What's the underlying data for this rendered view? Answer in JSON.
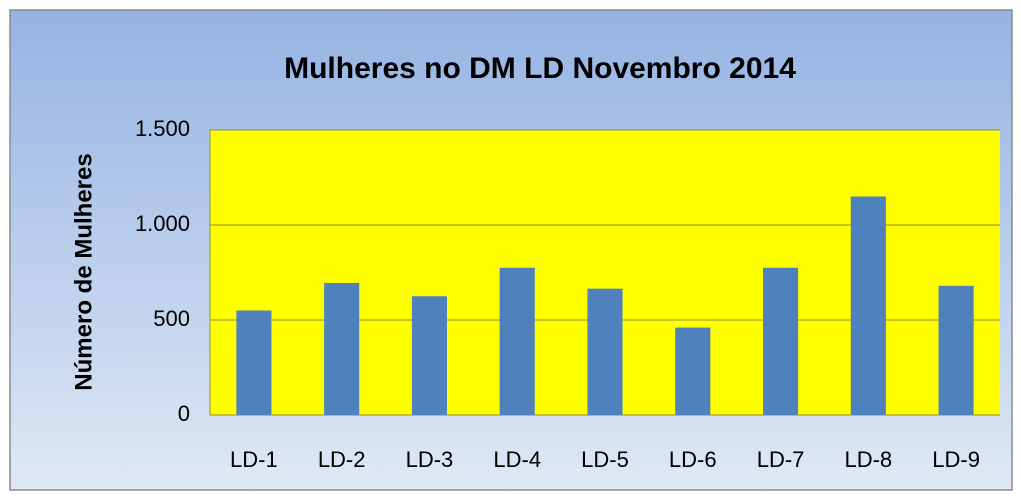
{
  "chart_data": {
    "type": "bar",
    "title": "Mulheres no DM LD  Novembro 2014",
    "y_label": "Número de Mulheres",
    "categories": [
      "LD-1",
      "LD-2",
      "LD-3",
      "LD-4",
      "LD-5",
      "LD-6",
      "LD-7",
      "LD-8",
      "LD-9"
    ],
    "values": [
      550,
      695,
      625,
      775,
      665,
      460,
      775,
      1150,
      680
    ],
    "color": "#4f81bd",
    "plot_color": "#ffff00",
    "ylim": [
      0,
      1500
    ],
    "yticks": [
      0,
      500,
      {
        "value": 1000,
        "label": "1.000"
      },
      {
        "value": 1500,
        "label": "1.500"
      }
    ],
    "grid": true
  }
}
